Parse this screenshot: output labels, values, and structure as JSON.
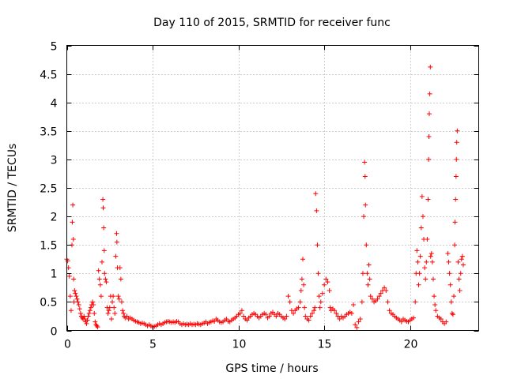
{
  "chart_data": {
    "type": "scatter",
    "title": "Day 110 of 2015, SRMTID for receiver func",
    "xlabel": "GPS time / hours",
    "ylabel": "SRMTID / TECUs",
    "xlim": [
      0,
      24
    ],
    "ylim": [
      0,
      5
    ],
    "xticks": [
      0,
      5,
      10,
      15,
      20
    ],
    "xtick_labels": [
      "0",
      "5",
      "10",
      "15",
      "20"
    ],
    "yticks": [
      0,
      0.5,
      1,
      1.5,
      2,
      2.5,
      3,
      3.5,
      4,
      4.5,
      5
    ],
    "ytick_labels": [
      "0",
      "0.5",
      "1",
      "1.5",
      "2",
      "2.5",
      "3",
      "3.5",
      "4",
      "4.5",
      "5"
    ],
    "grid": true,
    "marker": "+",
    "color": "#ff0000",
    "series": [
      {
        "name": "SRMTID",
        "points": [
          [
            0.0,
            1.25
          ],
          [
            0.05,
            1.22
          ],
          [
            0.1,
            1.1
          ],
          [
            0.15,
            0.95
          ],
          [
            0.2,
            0.6
          ],
          [
            0.25,
            0.35
          ],
          [
            0.3,
            1.5
          ],
          [
            0.32,
            1.9
          ],
          [
            0.35,
            2.2
          ],
          [
            0.38,
            1.6
          ],
          [
            0.4,
            0.9
          ],
          [
            0.42,
            0.5
          ],
          [
            0.45,
            0.7
          ],
          [
            0.5,
            0.65
          ],
          [
            0.55,
            0.6
          ],
          [
            0.6,
            0.55
          ],
          [
            0.65,
            0.5
          ],
          [
            0.7,
            0.45
          ],
          [
            0.75,
            0.38
          ],
          [
            0.8,
            0.3
          ],
          [
            0.85,
            0.25
          ],
          [
            0.9,
            0.22
          ],
          [
            0.95,
            0.2
          ],
          [
            1.0,
            0.25
          ],
          [
            1.05,
            0.2
          ],
          [
            1.1,
            0.15
          ],
          [
            1.15,
            0.12
          ],
          [
            1.2,
            0.18
          ],
          [
            1.25,
            0.25
          ],
          [
            1.3,
            0.3
          ],
          [
            1.35,
            0.35
          ],
          [
            1.4,
            0.4
          ],
          [
            1.45,
            0.45
          ],
          [
            1.5,
            0.5
          ],
          [
            1.55,
            0.45
          ],
          [
            1.6,
            0.3
          ],
          [
            1.65,
            0.15
          ],
          [
            1.7,
            0.1
          ],
          [
            1.75,
            0.08
          ],
          [
            1.8,
            0.06
          ],
          [
            1.85,
            1.05
          ],
          [
            1.9,
            0.9
          ],
          [
            1.95,
            0.8
          ],
          [
            2.0,
            0.6
          ],
          [
            2.05,
            1.2
          ],
          [
            2.1,
            2.3
          ],
          [
            2.12,
            2.15
          ],
          [
            2.15,
            1.8
          ],
          [
            2.18,
            1.4
          ],
          [
            2.2,
            1.0
          ],
          [
            2.25,
            0.9
          ],
          [
            2.3,
            0.85
          ],
          [
            2.35,
            0.4
          ],
          [
            2.4,
            0.3
          ],
          [
            2.45,
            0.35
          ],
          [
            2.5,
            0.4
          ],
          [
            2.55,
            0.6
          ],
          [
            2.6,
            0.2
          ],
          [
            2.65,
            0.5
          ],
          [
            2.7,
            0.6
          ],
          [
            2.75,
            0.4
          ],
          [
            2.8,
            0.3
          ],
          [
            2.85,
            1.3
          ],
          [
            2.9,
            1.7
          ],
          [
            2.92,
            1.55
          ],
          [
            2.95,
            1.1
          ],
          [
            3.0,
            0.6
          ],
          [
            3.05,
            0.55
          ],
          [
            3.1,
            1.1
          ],
          [
            3.15,
            0.9
          ],
          [
            3.2,
            0.5
          ],
          [
            3.25,
            0.35
          ],
          [
            3.3,
            0.3
          ],
          [
            3.35,
            0.25
          ],
          [
            3.4,
            0.22
          ],
          [
            3.5,
            0.25
          ],
          [
            3.6,
            0.2
          ],
          [
            3.7,
            0.22
          ],
          [
            3.8,
            0.2
          ],
          [
            3.9,
            0.18
          ],
          [
            4.0,
            0.16
          ],
          [
            4.1,
            0.15
          ],
          [
            4.2,
            0.14
          ],
          [
            4.3,
            0.12
          ],
          [
            4.4,
            0.13
          ],
          [
            4.5,
            0.12
          ],
          [
            4.6,
            0.1
          ],
          [
            4.7,
            0.08
          ],
          [
            4.8,
            0.1
          ],
          [
            4.9,
            0.08
          ],
          [
            5.0,
            0.06
          ],
          [
            5.1,
            0.07
          ],
          [
            5.2,
            0.08
          ],
          [
            5.3,
            0.1
          ],
          [
            5.4,
            0.12
          ],
          [
            5.5,
            0.1
          ],
          [
            5.6,
            0.12
          ],
          [
            5.7,
            0.14
          ],
          [
            5.8,
            0.15
          ],
          [
            5.9,
            0.16
          ],
          [
            6.0,
            0.15
          ],
          [
            6.1,
            0.14
          ],
          [
            6.2,
            0.15
          ],
          [
            6.3,
            0.14
          ],
          [
            6.4,
            0.16
          ],
          [
            6.5,
            0.15
          ],
          [
            6.6,
            0.12
          ],
          [
            6.7,
            0.1
          ],
          [
            6.8,
            0.12
          ],
          [
            6.9,
            0.1
          ],
          [
            7.0,
            0.11
          ],
          [
            7.1,
            0.1
          ],
          [
            7.2,
            0.12
          ],
          [
            7.3,
            0.1
          ],
          [
            7.4,
            0.11
          ],
          [
            7.5,
            0.1
          ],
          [
            7.6,
            0.12
          ],
          [
            7.7,
            0.11
          ],
          [
            7.8,
            0.1
          ],
          [
            7.9,
            0.12
          ],
          [
            8.0,
            0.13
          ],
          [
            8.1,
            0.15
          ],
          [
            8.2,
            0.12
          ],
          [
            8.3,
            0.14
          ],
          [
            8.4,
            0.15
          ],
          [
            8.5,
            0.17
          ],
          [
            8.6,
            0.16
          ],
          [
            8.7,
            0.2
          ],
          [
            8.8,
            0.18
          ],
          [
            8.9,
            0.15
          ],
          [
            9.0,
            0.14
          ],
          [
            9.1,
            0.15
          ],
          [
            9.2,
            0.18
          ],
          [
            9.3,
            0.2
          ],
          [
            9.4,
            0.16
          ],
          [
            9.5,
            0.15
          ],
          [
            9.6,
            0.18
          ],
          [
            9.7,
            0.2
          ],
          [
            9.8,
            0.22
          ],
          [
            9.9,
            0.25
          ],
          [
            10.0,
            0.28
          ],
          [
            10.1,
            0.3
          ],
          [
            10.2,
            0.35
          ],
          [
            10.3,
            0.25
          ],
          [
            10.4,
            0.2
          ],
          [
            10.5,
            0.18
          ],
          [
            10.6,
            0.22
          ],
          [
            10.7,
            0.25
          ],
          [
            10.8,
            0.28
          ],
          [
            10.9,
            0.3
          ],
          [
            11.0,
            0.28
          ],
          [
            11.1,
            0.25
          ],
          [
            11.2,
            0.22
          ],
          [
            11.3,
            0.25
          ],
          [
            11.4,
            0.28
          ],
          [
            11.5,
            0.3
          ],
          [
            11.6,
            0.28
          ],
          [
            11.7,
            0.22
          ],
          [
            11.8,
            0.25
          ],
          [
            11.9,
            0.3
          ],
          [
            12.0,
            0.32
          ],
          [
            12.1,
            0.28
          ],
          [
            12.2,
            0.25
          ],
          [
            12.3,
            0.3
          ],
          [
            12.4,
            0.28
          ],
          [
            12.5,
            0.25
          ],
          [
            12.6,
            0.22
          ],
          [
            12.7,
            0.2
          ],
          [
            12.8,
            0.25
          ],
          [
            12.9,
            0.6
          ],
          [
            13.0,
            0.5
          ],
          [
            13.1,
            0.35
          ],
          [
            13.2,
            0.3
          ],
          [
            13.3,
            0.35
          ],
          [
            13.4,
            0.38
          ],
          [
            13.5,
            0.4
          ],
          [
            13.6,
            0.5
          ],
          [
            13.65,
            0.7
          ],
          [
            13.7,
            0.9
          ],
          [
            13.75,
            1.25
          ],
          [
            13.8,
            0.8
          ],
          [
            13.85,
            0.4
          ],
          [
            13.9,
            0.25
          ],
          [
            14.0,
            0.2
          ],
          [
            14.1,
            0.18
          ],
          [
            14.2,
            0.25
          ],
          [
            14.3,
            0.3
          ],
          [
            14.4,
            0.35
          ],
          [
            14.45,
            0.4
          ],
          [
            14.5,
            2.4
          ],
          [
            14.55,
            2.1
          ],
          [
            14.6,
            1.5
          ],
          [
            14.65,
            1.0
          ],
          [
            14.7,
            0.6
          ],
          [
            14.75,
            0.4
          ],
          [
            14.8,
            0.5
          ],
          [
            14.9,
            0.65
          ],
          [
            15.0,
            0.8
          ],
          [
            15.1,
            0.9
          ],
          [
            15.2,
            0.85
          ],
          [
            15.3,
            0.7
          ],
          [
            15.35,
            0.4
          ],
          [
            15.4,
            0.35
          ],
          [
            15.5,
            0.38
          ],
          [
            15.6,
            0.35
          ],
          [
            15.7,
            0.3
          ],
          [
            15.8,
            0.25
          ],
          [
            15.9,
            0.2
          ],
          [
            16.0,
            0.25
          ],
          [
            16.1,
            0.22
          ],
          [
            16.2,
            0.25
          ],
          [
            16.3,
            0.28
          ],
          [
            16.4,
            0.3
          ],
          [
            16.5,
            0.32
          ],
          [
            16.6,
            0.3
          ],
          [
            16.7,
            0.45
          ],
          [
            16.8,
            0.1
          ],
          [
            16.9,
            0.05
          ],
          [
            17.0,
            0.15
          ],
          [
            17.1,
            0.2
          ],
          [
            17.2,
            0.5
          ],
          [
            17.25,
            1.0
          ],
          [
            17.3,
            2.0
          ],
          [
            17.35,
            2.95
          ],
          [
            17.38,
            2.7
          ],
          [
            17.4,
            2.2
          ],
          [
            17.45,
            1.5
          ],
          [
            17.5,
            1.0
          ],
          [
            17.55,
            0.8
          ],
          [
            17.6,
            1.15
          ],
          [
            17.65,
            0.9
          ],
          [
            17.7,
            0.6
          ],
          [
            17.8,
            0.55
          ],
          [
            17.9,
            0.5
          ],
          [
            18.0,
            0.52
          ],
          [
            18.1,
            0.55
          ],
          [
            18.2,
            0.6
          ],
          [
            18.3,
            0.65
          ],
          [
            18.4,
            0.7
          ],
          [
            18.5,
            0.75
          ],
          [
            18.6,
            0.7
          ],
          [
            18.7,
            0.5
          ],
          [
            18.8,
            0.35
          ],
          [
            18.9,
            0.3
          ],
          [
            19.0,
            0.28
          ],
          [
            19.1,
            0.25
          ],
          [
            19.2,
            0.22
          ],
          [
            19.3,
            0.2
          ],
          [
            19.4,
            0.18
          ],
          [
            19.5,
            0.15
          ],
          [
            19.6,
            0.2
          ],
          [
            19.7,
            0.18
          ],
          [
            19.8,
            0.16
          ],
          [
            19.9,
            0.15
          ],
          [
            20.0,
            0.18
          ],
          [
            20.1,
            0.2
          ],
          [
            20.2,
            0.22
          ],
          [
            20.3,
            0.5
          ],
          [
            20.35,
            1.0
          ],
          [
            20.4,
            1.4
          ],
          [
            20.45,
            1.2
          ],
          [
            20.5,
            0.8
          ],
          [
            20.55,
            1.0
          ],
          [
            20.6,
            1.3
          ],
          [
            20.65,
            1.8
          ],
          [
            20.7,
            2.35
          ],
          [
            20.75,
            2.0
          ],
          [
            20.8,
            1.6
          ],
          [
            20.85,
            1.1
          ],
          [
            20.9,
            0.9
          ],
          [
            20.95,
            1.2
          ],
          [
            21.0,
            1.6
          ],
          [
            21.05,
            2.3
          ],
          [
            21.08,
            3.0
          ],
          [
            21.1,
            3.4
          ],
          [
            21.12,
            3.8
          ],
          [
            21.15,
            4.15
          ],
          [
            21.18,
            4.62
          ],
          [
            21.2,
            1.3
          ],
          [
            21.25,
            1.35
          ],
          [
            21.3,
            1.2
          ],
          [
            21.35,
            0.9
          ],
          [
            21.4,
            0.6
          ],
          [
            21.45,
            0.45
          ],
          [
            21.5,
            0.35
          ],
          [
            21.6,
            0.25
          ],
          [
            21.7,
            0.22
          ],
          [
            21.8,
            0.2
          ],
          [
            21.9,
            0.15
          ],
          [
            22.0,
            0.12
          ],
          [
            22.1,
            0.15
          ],
          [
            22.2,
            1.35
          ],
          [
            22.25,
            1.2
          ],
          [
            22.3,
            1.0
          ],
          [
            22.35,
            0.8
          ],
          [
            22.4,
            0.5
          ],
          [
            22.45,
            0.3
          ],
          [
            22.5,
            0.28
          ],
          [
            22.55,
            0.6
          ],
          [
            22.6,
            1.5
          ],
          [
            22.62,
            1.9
          ],
          [
            22.65,
            2.3
          ],
          [
            22.68,
            2.7
          ],
          [
            22.7,
            3.0
          ],
          [
            22.72,
            3.3
          ],
          [
            22.75,
            3.5
          ],
          [
            22.8,
            1.2
          ],
          [
            22.85,
            0.9
          ],
          [
            22.9,
            0.7
          ],
          [
            22.95,
            1.0
          ],
          [
            23.0,
            1.25
          ],
          [
            23.05,
            1.3
          ],
          [
            23.1,
            1.15
          ]
        ]
      }
    ]
  }
}
